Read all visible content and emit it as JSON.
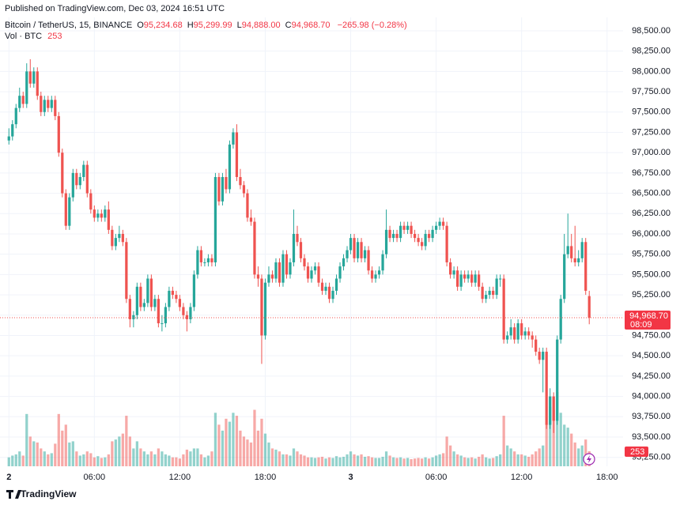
{
  "header": {
    "published": "Published on TradingView.com, Dec 03, 2024 16:51 UTC",
    "symbol": "Bitcoin / TetherUS, 15, BINANCE",
    "legend": [
      {
        "key": "O",
        "value": "95,234.68"
      },
      {
        "key": "H",
        "value": "95,299.99"
      },
      {
        "key": "L",
        "value": "94,888.00"
      },
      {
        "key": "C",
        "value": "94,968.70"
      }
    ],
    "change": "−265.98 (−0.28%)",
    "volume_label": "Vol · BTC",
    "volume_value": "253",
    "countdown": "08:09"
  },
  "chart_data": {
    "type": "candlestick",
    "up_color": "#26a69a",
    "down_color": "#ef5350",
    "grid": true,
    "xlim": [
      -2.5,
      172.5
    ],
    "xticks": [
      {
        "value": 0,
        "label": "2"
      },
      {
        "value": 24,
        "label": "06:00"
      },
      {
        "value": 48,
        "label": "12:00"
      },
      {
        "value": 72,
        "label": "18:00"
      },
      {
        "value": 96,
        "label": "3"
      },
      {
        "value": 120,
        "label": "06:00"
      },
      {
        "value": 144,
        "label": "12:00"
      },
      {
        "value": 168,
        "label": "18:00"
      }
    ],
    "ylim": [
      93140,
      98665
    ],
    "yticks": [
      {
        "value": 93250,
        "label": "93,250.00"
      },
      {
        "value": 93500,
        "label": "93,500.00"
      },
      {
        "value": 93750,
        "label": "93,750.00"
      },
      {
        "value": 94000,
        "label": "94,000.00"
      },
      {
        "value": 94250,
        "label": "94,250.00"
      },
      {
        "value": 94500,
        "label": "94,500.00"
      },
      {
        "value": 94750,
        "label": "94,750.00"
      },
      {
        "value": 95000,
        "label": "95,000.00"
      },
      {
        "value": 95250,
        "label": "95,250.00"
      },
      {
        "value": 95500,
        "label": "95,500.00"
      },
      {
        "value": 95750,
        "label": "95,750.00"
      },
      {
        "value": 96000,
        "label": "96,000.00"
      },
      {
        "value": 96250,
        "label": "96,250.00"
      },
      {
        "value": 96500,
        "label": "96,500.00"
      },
      {
        "value": 96750,
        "label": "96,750.00"
      },
      {
        "value": 97000,
        "label": "97,000.00"
      },
      {
        "value": 97250,
        "label": "97,250.00"
      },
      {
        "value": 97500,
        "label": "97,500.00"
      },
      {
        "value": 97750,
        "label": "97,750.00"
      },
      {
        "value": 98000,
        "label": "98,000.00"
      },
      {
        "value": 98250,
        "label": "98,250.00"
      },
      {
        "value": 98500,
        "label": "98,500.00"
      }
    ],
    "ohlc": [
      [
        97150,
        97300,
        97100,
        97200
      ],
      [
        97200,
        97400,
        97150,
        97350
      ],
      [
        97350,
        97600,
        97300,
        97550
      ],
      [
        97550,
        97800,
        97500,
        97700
      ],
      [
        97700,
        97750,
        97550,
        97600
      ],
      [
        97600,
        98100,
        97550,
        98000
      ],
      [
        98000,
        98150,
        97800,
        97850
      ],
      [
        97850,
        98050,
        97800,
        98000
      ],
      [
        98000,
        98050,
        97650,
        97700
      ],
      [
        97700,
        97750,
        97450,
        97500
      ],
      [
        97500,
        97700,
        97450,
        97650
      ],
      [
        97650,
        97700,
        97500,
        97550
      ],
      [
        97550,
        97700,
        97500,
        97650
      ],
      [
        97650,
        97700,
        97400,
        97450
      ],
      [
        97450,
        97500,
        96950,
        97000
      ],
      [
        97000,
        97050,
        96450,
        96500
      ],
      [
        96500,
        96550,
        96050,
        96100
      ],
      [
        96100,
        96500,
        96050,
        96450
      ],
      [
        96450,
        96800,
        96400,
        96750
      ],
      [
        96750,
        96800,
        96550,
        96600
      ],
      [
        96600,
        96750,
        96550,
        96700
      ],
      [
        96700,
        96900,
        96650,
        96850
      ],
      [
        96850,
        96900,
        96450,
        96500
      ],
      [
        96500,
        96550,
        96250,
        96300
      ],
      [
        96300,
        96350,
        96150,
        96200
      ],
      [
        96200,
        96300,
        96150,
        96250
      ],
      [
        96250,
        96300,
        96150,
        96200
      ],
      [
        96200,
        96350,
        96150,
        96300
      ],
      [
        96300,
        96400,
        96000,
        96050
      ],
      [
        96050,
        96100,
        95800,
        95850
      ],
      [
        95850,
        96000,
        95800,
        95950
      ],
      [
        95950,
        96100,
        95900,
        96000
      ],
      [
        96000,
        96050,
        95850,
        95900
      ],
      [
        95900,
        95950,
        95150,
        95200
      ],
      [
        95200,
        95250,
        94850,
        94950
      ],
      [
        94950,
        95050,
        94850,
        95000
      ],
      [
        95000,
        95400,
        94950,
        95350
      ],
      [
        95350,
        95400,
        95050,
        95100
      ],
      [
        95100,
        95200,
        95050,
        95150
      ],
      [
        95150,
        95500,
        95100,
        95450
      ],
      [
        95450,
        95500,
        95050,
        95100
      ],
      [
        95100,
        95250,
        95050,
        95200
      ],
      [
        95200,
        95250,
        94850,
        94900
      ],
      [
        94900,
        95000,
        94800,
        94900
      ],
      [
        94900,
        95150,
        94850,
        95100
      ],
      [
        95100,
        95350,
        95050,
        95300
      ],
      [
        95300,
        95350,
        95200,
        95250
      ],
      [
        95250,
        95300,
        95150,
        95200
      ],
      [
        95200,
        95250,
        95050,
        95100
      ],
      [
        95100,
        95150,
        94950,
        95000
      ],
      [
        95000,
        95050,
        94800,
        94950
      ],
      [
        94950,
        95150,
        94900,
        95100
      ],
      [
        95100,
        95550,
        95050,
        95500
      ],
      [
        95500,
        95850,
        95450,
        95800
      ],
      [
        95800,
        95850,
        95600,
        95650
      ],
      [
        95650,
        95700,
        95600,
        95650
      ],
      [
        95650,
        95750,
        95600,
        95700
      ],
      [
        95700,
        95750,
        95600,
        95650
      ],
      [
        95650,
        96750,
        95600,
        96700
      ],
      [
        96700,
        96750,
        96350,
        96400
      ],
      [
        96400,
        96750,
        96350,
        96700
      ],
      [
        96700,
        96800,
        96500,
        96550
      ],
      [
        96550,
        97150,
        96500,
        97100
      ],
      [
        97100,
        97300,
        97050,
        97250
      ],
      [
        97250,
        97350,
        96650,
        96700
      ],
      [
        96700,
        96800,
        96550,
        96600
      ],
      [
        96600,
        96650,
        96450,
        96500
      ],
      [
        96500,
        96550,
        96150,
        96200
      ],
      [
        96200,
        96300,
        96100,
        96150
      ],
      [
        96150,
        96200,
        95450,
        95500
      ],
      [
        95500,
        95600,
        95350,
        95450
      ],
      [
        95450,
        95500,
        94400,
        94750
      ],
      [
        94750,
        95450,
        94700,
        95400
      ],
      [
        95400,
        95600,
        95350,
        95500
      ],
      [
        95500,
        95550,
        95400,
        95450
      ],
      [
        95450,
        95700,
        95400,
        95650
      ],
      [
        95650,
        95700,
        95350,
        95400
      ],
      [
        95400,
        95800,
        95350,
        95750
      ],
      [
        95750,
        95800,
        95450,
        95500
      ],
      [
        95500,
        95700,
        95450,
        95650
      ],
      [
        95650,
        96300,
        95600,
        96000
      ],
      [
        96000,
        96100,
        95850,
        95900
      ],
      [
        95900,
        95950,
        95650,
        95700
      ],
      [
        95700,
        95750,
        95550,
        95600
      ],
      [
        95600,
        95650,
        95400,
        95450
      ],
      [
        95450,
        95600,
        95400,
        95550
      ],
      [
        95550,
        95650,
        95500,
        95600
      ],
      [
        95600,
        95650,
        95350,
        95400
      ],
      [
        95400,
        95450,
        95250,
        95300
      ],
      [
        95300,
        95400,
        95250,
        95350
      ],
      [
        95350,
        95400,
        95150,
        95200
      ],
      [
        95200,
        95350,
        95150,
        95300
      ],
      [
        95300,
        95500,
        95250,
        95450
      ],
      [
        95450,
        95650,
        95400,
        95600
      ],
      [
        95600,
        95750,
        95550,
        95700
      ],
      [
        95700,
        95850,
        95650,
        95800
      ],
      [
        95800,
        96000,
        95750,
        95950
      ],
      [
        95950,
        96000,
        95650,
        95700
      ],
      [
        95700,
        95950,
        95650,
        95900
      ],
      [
        95900,
        95950,
        95650,
        95700
      ],
      [
        95700,
        95850,
        95650,
        95800
      ],
      [
        95800,
        95850,
        95500,
        95550
      ],
      [
        95550,
        95600,
        95400,
        95450
      ],
      [
        95450,
        95550,
        95400,
        95500
      ],
      [
        95500,
        95600,
        95450,
        95550
      ],
      [
        95550,
        95800,
        95500,
        95750
      ],
      [
        95750,
        96300,
        95700,
        96050
      ],
      [
        96050,
        96100,
        95900,
        95950
      ],
      [
        95950,
        96050,
        95900,
        96000
      ],
      [
        96000,
        96050,
        95900,
        95950
      ],
      [
        95950,
        96150,
        95900,
        96100
      ],
      [
        96100,
        96150,
        96000,
        96050
      ],
      [
        96050,
        96150,
        96000,
        96100
      ],
      [
        96100,
        96150,
        95950,
        96000
      ],
      [
        96000,
        96050,
        95900,
        95950
      ],
      [
        95950,
        96000,
        95850,
        95900
      ],
      [
        95900,
        95950,
        95800,
        95850
      ],
      [
        95850,
        96050,
        95800,
        96000
      ],
      [
        96000,
        96050,
        95900,
        95950
      ],
      [
        95950,
        96100,
        95900,
        96050
      ],
      [
        96050,
        96150,
        96000,
        96100
      ],
      [
        96100,
        96200,
        96050,
        96150
      ],
      [
        96150,
        96200,
        96050,
        96100
      ],
      [
        96100,
        96150,
        95600,
        95650
      ],
      [
        95650,
        95700,
        95450,
        95500
      ],
      [
        95500,
        95600,
        95450,
        95550
      ],
      [
        95550,
        95600,
        95300,
        95350
      ],
      [
        95350,
        95550,
        95300,
        95500
      ],
      [
        95500,
        95550,
        95400,
        95450
      ],
      [
        95450,
        95550,
        95400,
        95500
      ],
      [
        95500,
        95550,
        95350,
        95400
      ],
      [
        95400,
        95550,
        95350,
        95500
      ],
      [
        95500,
        95550,
        95300,
        95350
      ],
      [
        95350,
        95400,
        95150,
        95200
      ],
      [
        95200,
        95300,
        95150,
        95250
      ],
      [
        95250,
        95350,
        95200,
        95300
      ],
      [
        95300,
        95350,
        95200,
        95250
      ],
      [
        95250,
        95500,
        95200,
        95450
      ],
      [
        95450,
        95500,
        95350,
        95450
      ],
      [
        95450,
        95500,
        94650,
        94700
      ],
      [
        94700,
        94800,
        94650,
        94750
      ],
      [
        94750,
        94950,
        94700,
        94850
      ],
      [
        94850,
        94900,
        94650,
        94700
      ],
      [
        94700,
        94950,
        94650,
        94900
      ],
      [
        94900,
        94950,
        94700,
        94750
      ],
      [
        94750,
        94850,
        94700,
        94800
      ],
      [
        94800,
        94850,
        94700,
        94750
      ],
      [
        94750,
        94800,
        94600,
        94700
      ],
      [
        94700,
        94750,
        94500,
        94550
      ],
      [
        94550,
        94600,
        94400,
        94450
      ],
      [
        94450,
        94600,
        94050,
        94550
      ],
      [
        94550,
        94600,
        93600,
        93650
      ],
      [
        93650,
        94100,
        93600,
        94000
      ],
      [
        94000,
        94050,
        93550,
        93700
      ],
      [
        93700,
        94750,
        93650,
        94700
      ],
      [
        94700,
        95250,
        94650,
        95200
      ],
      [
        95200,
        96000,
        95150,
        95750
      ],
      [
        95750,
        96250,
        95700,
        95850
      ],
      [
        95850,
        96000,
        95650,
        95700
      ],
      [
        95700,
        96100,
        95600,
        95650
      ],
      [
        95650,
        95800,
        95600,
        95700
      ],
      [
        95700,
        95950,
        95650,
        95900
      ],
      [
        95900,
        95950,
        95250,
        95300
      ],
      [
        95234.68,
        95299.99,
        94888,
        94968.7
      ]
    ],
    "volume": [
      150,
      180,
      200,
      250,
      180,
      880,
      500,
      420,
      400,
      300,
      250,
      200,
      220,
      380,
      880,
      600,
      700,
      400,
      420,
      250,
      180,
      200,
      250,
      220,
      150,
      170,
      140,
      150,
      200,
      420,
      450,
      500,
      550,
      850,
      500,
      300,
      420,
      300,
      250,
      200,
      250,
      200,
      300,
      250,
      200,
      180,
      150,
      150,
      130,
      200,
      280,
      250,
      300,
      300,
      200,
      150,
      180,
      250,
      900,
      700,
      600,
      800,
      750,
      900,
      850,
      600,
      500,
      450,
      400,
      950,
      600,
      800,
      550,
      400,
      300,
      280,
      250,
      200,
      200,
      180,
      300,
      250,
      200,
      180,
      150,
      150,
      140,
      150,
      160,
      130,
      150,
      140,
      170,
      150,
      160,
      200,
      250,
      200,
      180,
      200,
      160,
      170,
      150,
      140,
      140,
      160,
      250,
      180,
      150,
      140,
      150,
      130,
      140,
      120,
      130,
      140,
      130,
      150,
      130,
      150,
      180,
      200,
      220,
      500,
      350,
      250,
      200,
      180,
      150,
      140,
      150,
      130,
      160,
      200,
      150,
      130,
      140,
      170,
      200,
      850,
      350,
      300,
      250,
      200,
      200,
      180,
      160,
      200,
      250,
      300,
      350,
      700,
      1000,
      950,
      1250,
      900,
      700,
      650,
      550,
      400,
      300,
      350,
      450,
      253
    ]
  },
  "footer": {
    "brand": "TradingView"
  }
}
